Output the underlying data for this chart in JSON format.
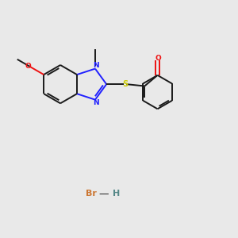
{
  "bg_color": "#e9e9e9",
  "bond_color": "#1a1a1a",
  "N_color": "#2020ff",
  "O_color": "#ee1111",
  "S_color": "#cccc00",
  "Br_color": "#cc7733",
  "H_color": "#558888",
  "lw": 1.4,
  "figsize": [
    3.0,
    3.0
  ],
  "dpi": 100,
  "xlim": [
    0,
    10
  ],
  "ylim": [
    0,
    10
  ]
}
